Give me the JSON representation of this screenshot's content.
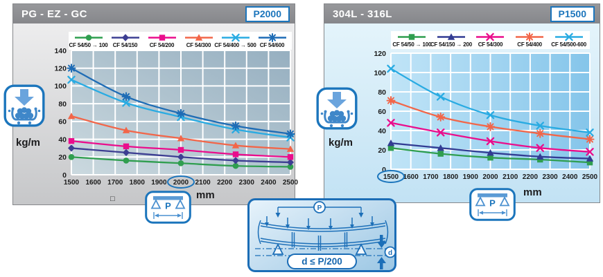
{
  "colors": {
    "accent": "#1b75bc",
    "header_gray": "#8e9093"
  },
  "panels": [
    {
      "title": "PG - EZ - GC",
      "badge": "P2000",
      "unit_y": "kg/m",
      "unit_x": "mm",
      "footnote_symbol": "□"
    },
    {
      "title": "304L - 316L",
      "badge": "P1500",
      "unit_y": "kg/m",
      "unit_x": "mm"
    }
  ],
  "diagram": {
    "span_label": "P",
    "deflection_label": "d",
    "formula": "d ≤ P/200"
  },
  "chart_data": [
    {
      "type": "line",
      "title": "PG - EZ - GC (P2000)",
      "xlabel": "mm",
      "ylabel": "kg/m",
      "x": [
        1500,
        1750,
        2000,
        2250,
        2500
      ],
      "xlim": [
        1500,
        2500
      ],
      "ylim": [
        0,
        140
      ],
      "xticks": [
        1500,
        1600,
        1700,
        1800,
        1900,
        2000,
        2100,
        2200,
        2300,
        2400,
        2500
      ],
      "yticks": [
        0,
        20,
        40,
        60,
        80,
        100,
        120,
        140
      ],
      "circled_xtick": 2000,
      "grid": true,
      "legend_position": "top",
      "series": [
        {
          "name": "CF 54/50 → 100",
          "marker": "circle",
          "color": "#2f9e4f",
          "values": [
            20,
            16,
            13,
            10,
            9
          ]
        },
        {
          "name": "CF 54/150",
          "marker": "diamond",
          "color": "#3d3e92",
          "values": [
            30,
            25,
            20,
            16,
            14
          ]
        },
        {
          "name": "CF 54/200",
          "marker": "square",
          "color": "#ea0d8c",
          "values": [
            38,
            32,
            28,
            23,
            20
          ]
        },
        {
          "name": "CF 54/300",
          "marker": "triangle",
          "color": "#f26649",
          "values": [
            66,
            50,
            41,
            33,
            29
          ]
        },
        {
          "name": "CF 54/400 → 500",
          "marker": "x",
          "color": "#29abe2",
          "values": [
            107,
            81,
            65,
            51,
            42
          ]
        },
        {
          "name": "CF 54/600",
          "marker": "asterisk",
          "color": "#1e6cb5",
          "values": [
            120,
            88,
            69,
            55,
            46
          ]
        }
      ]
    },
    {
      "type": "line",
      "title": "304L - 316L (P1500)",
      "xlabel": "mm",
      "ylabel": "kg/m",
      "x": [
        1500,
        1750,
        2000,
        2250,
        2500
      ],
      "xlim": [
        1500,
        2500
      ],
      "ylim": [
        0,
        120
      ],
      "xticks": [
        1500,
        1600,
        1700,
        1800,
        1900,
        2000,
        2100,
        2200,
        2300,
        2400,
        2500
      ],
      "yticks": [
        0,
        20,
        40,
        60,
        80,
        100,
        120
      ],
      "circled_xtick": 1500,
      "grid": true,
      "legend_position": "top",
      "series": [
        {
          "name": "CF 54/50 → 100",
          "marker": "square",
          "color": "#2f9e4f",
          "values": [
            22,
            16,
            12,
            10,
            7
          ]
        },
        {
          "name": "CF 54/150 → 200",
          "marker": "triangle",
          "color": "#323c93",
          "values": [
            27,
            22,
            17,
            13,
            11
          ]
        },
        {
          "name": "CF 54/300",
          "marker": "x",
          "color": "#ea0d8c",
          "values": [
            48,
            38,
            29,
            22,
            18
          ]
        },
        {
          "name": "CF 54/400",
          "marker": "asterisk",
          "color": "#f26649",
          "values": [
            71,
            54,
            44,
            37,
            31
          ]
        },
        {
          "name": "CF 54/500-600",
          "marker": "x",
          "color": "#29abe2",
          "values": [
            104,
            75,
            56,
            45,
            38
          ]
        }
      ]
    }
  ]
}
